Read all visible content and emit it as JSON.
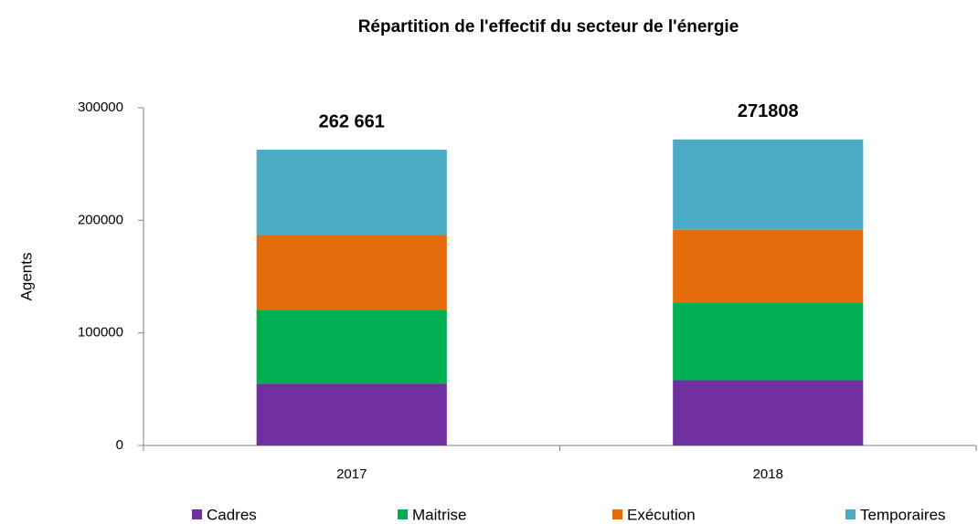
{
  "chart_data": {
    "type": "stacked_bar",
    "title": "Répartition de l'effectif du secteur de l'énergie",
    "ylabel": "Agents",
    "categories": [
      "2017",
      "2018"
    ],
    "series": [
      {
        "name": "Cadres",
        "color": "#7030a0",
        "values": [
          55000,
          58000
        ]
      },
      {
        "name": "Maitrise",
        "color": "#00b050",
        "values": [
          65000,
          68500
        ]
      },
      {
        "name": "Exécution",
        "color": "#e36c0a",
        "values": [
          66500,
          65000
        ]
      },
      {
        "name": "Temporaires",
        "color": "#4bacc6",
        "values": [
          76161,
          80308
        ]
      }
    ],
    "total_labels": [
      "262 661",
      "271808"
    ],
    "ylim": [
      0,
      300000
    ],
    "yticks": [
      0,
      100000,
      200000,
      300000
    ],
    "grid": false,
    "legend": "bottom"
  }
}
